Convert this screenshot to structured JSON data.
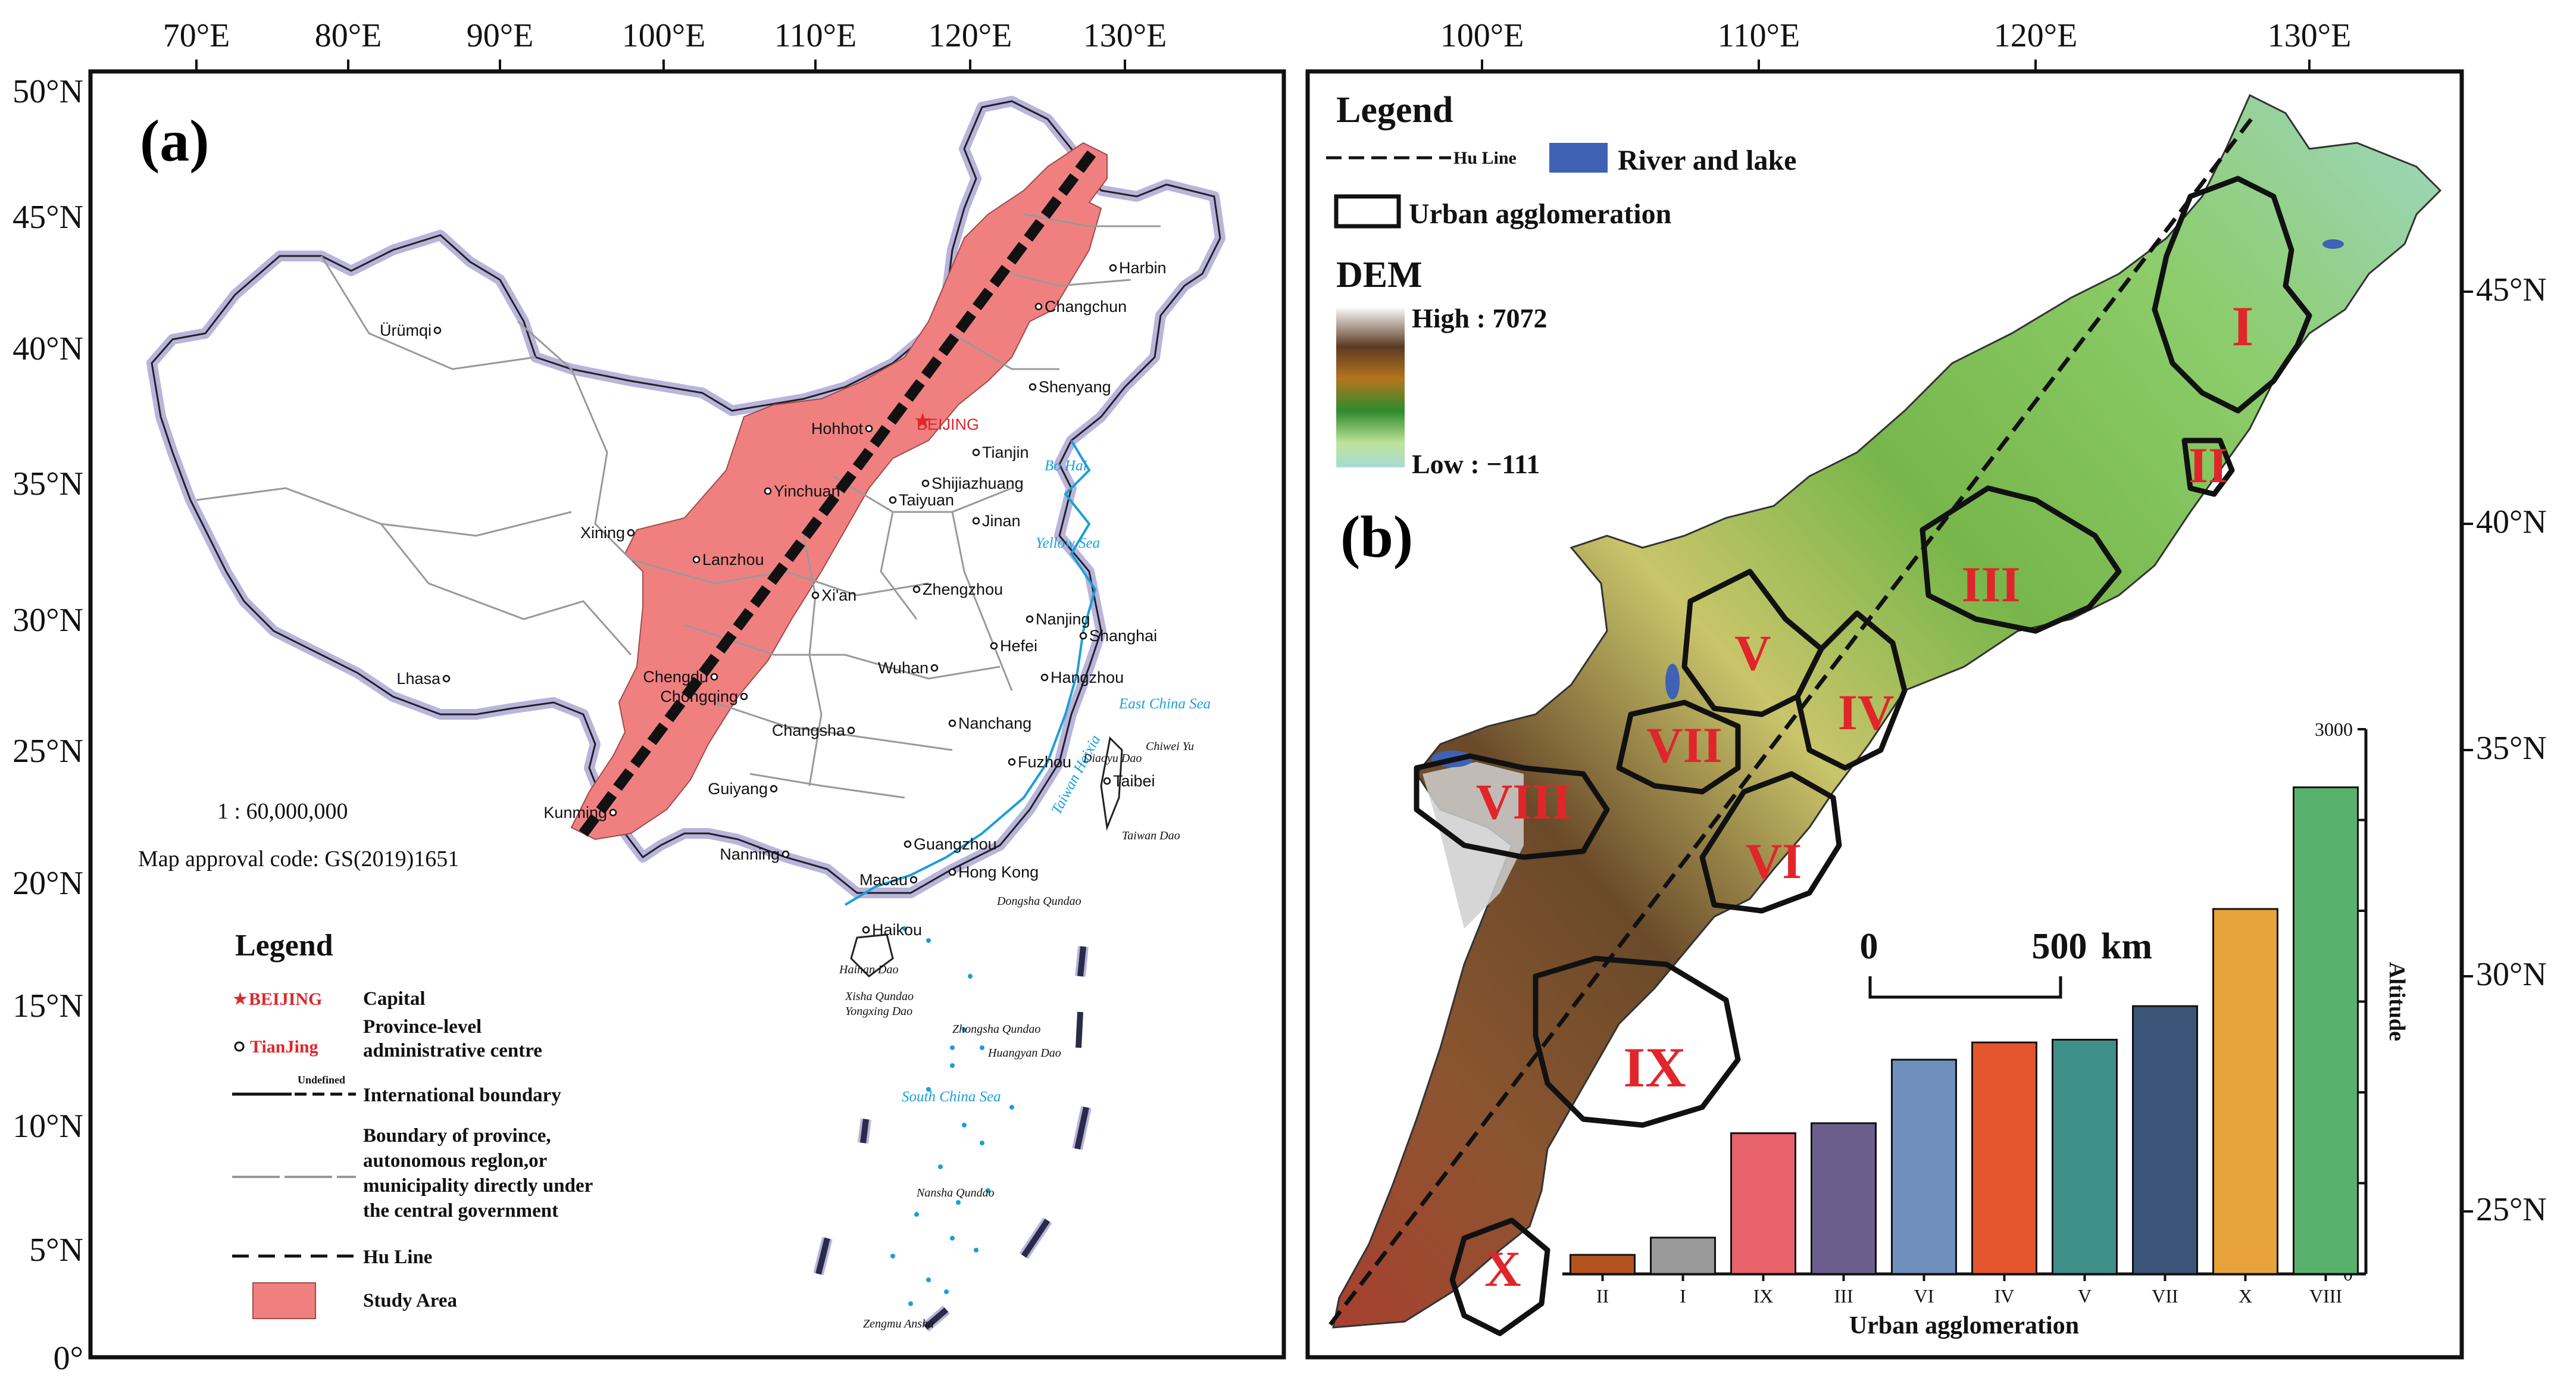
{
  "panel_a": {
    "label": "(a)",
    "lon_ticks": [
      "70°E",
      "80°E",
      "90°E",
      "100°E",
      "110°E",
      "120°E",
      "130°E"
    ],
    "lat_ticks": [
      "50°N",
      "45°N",
      "40°N",
      "35°N",
      "30°N",
      "25°N",
      "20°N",
      "15°N",
      "10°N",
      "5°N",
      "0°"
    ],
    "scale_text": "1 : 60,000,000",
    "approval_text": "Map approval code: GS(2019)1651",
    "capital_label": "BEIJING",
    "cities": [
      {
        "name": "Ürümqi"
      },
      {
        "name": "Harbin"
      },
      {
        "name": "Changchun"
      },
      {
        "name": "Shenyang"
      },
      {
        "name": "Hohhot"
      },
      {
        "name": "Tianjin"
      },
      {
        "name": "Shijiazhuang"
      },
      {
        "name": "Yinchuan"
      },
      {
        "name": "Taiyuan"
      },
      {
        "name": "Xining"
      },
      {
        "name": "Jinan"
      },
      {
        "name": "Lanzhou"
      },
      {
        "name": "Xi'an"
      },
      {
        "name": "Zhengzhou"
      },
      {
        "name": "Nanjing"
      },
      {
        "name": "Shanghai"
      },
      {
        "name": "Hefei"
      },
      {
        "name": "Lhasa"
      },
      {
        "name": "Chengdu"
      },
      {
        "name": "Wuhan"
      },
      {
        "name": "Hangzhou"
      },
      {
        "name": "Chongqing"
      },
      {
        "name": "Changsha"
      },
      {
        "name": "Nanchang"
      },
      {
        "name": "Fuzhou"
      },
      {
        "name": "Taibei"
      },
      {
        "name": "Guiyang"
      },
      {
        "name": "Kunming"
      },
      {
        "name": "Nanning"
      },
      {
        "name": "Guangzhou"
      },
      {
        "name": "Hong Kong"
      },
      {
        "name": "Macau"
      },
      {
        "name": "Haikou"
      }
    ],
    "seas": [
      "Bo Hai",
      "Yellow Sea",
      "East China Sea",
      "South China Sea",
      "Taiwan Haixia"
    ],
    "islands": [
      "Chiwei Yu",
      "Diaoyu Dao",
      "Taiwan Dao",
      "Dongsha Qundao",
      "Hainan Dao",
      "Xisha Qundao",
      "Yongxing Dao",
      "Zhongsha Qundao",
      "Huangyan Dao",
      "Nansha Qundao",
      "Zengmu Ansha"
    ],
    "legend": {
      "title": "Legend",
      "capital_sample": "BEIJING",
      "capital_label": "Capital",
      "province_sample": "TianJing",
      "province_label_1": "Province-level",
      "province_label_2": "administrative centre",
      "undefined_label": "Undefined",
      "intl_label": "International boundary",
      "prov_boundary_1": "Boundary of province,",
      "prov_boundary_2": "autonomous reglon,or",
      "prov_boundary_3": "municipality directly under",
      "prov_boundary_4": "the central government",
      "huline_label": "Hu Line",
      "study_label": "Study Area"
    }
  },
  "panel_b": {
    "label": "(b)",
    "lon_ticks": [
      "100°E",
      "110°E",
      "120°E",
      "130°E"
    ],
    "lat_ticks": [
      "45°N",
      "40°N",
      "35°N",
      "30°N",
      "25°N"
    ],
    "legend": {
      "title": "Legend",
      "huline": "Hu Line",
      "river": "River and lake",
      "ua": "Urban agglomeration",
      "dem_title": "DEM",
      "dem_high": "High : 7072",
      "dem_low": "Low : −111"
    },
    "scalebar": {
      "zero": "0",
      "end": "500",
      "unit": "km"
    },
    "regions": [
      "I",
      "II",
      "III",
      "IV",
      "V",
      "VI",
      "VII",
      "VIII",
      "IX",
      "X"
    ]
  },
  "chart_data": {
    "type": "bar",
    "categories": [
      "II",
      "I",
      "IX",
      "III",
      "VI",
      "IV",
      "V",
      "VII",
      "X",
      "VIII"
    ],
    "values": [
      105,
      200,
      775,
      830,
      1180,
      1275,
      1290,
      1475,
      2010,
      2680
    ],
    "colors": [
      "#b3541e",
      "#999999",
      "#e8636b",
      "#6b5e8c",
      "#6f8fbd",
      "#e4572e",
      "#3f8f8a",
      "#3c5478",
      "#e8a33a",
      "#58b26e"
    ],
    "ylabel": "Altitude",
    "xlabel": "Urban agglomeration",
    "ylim": [
      0,
      3000
    ],
    "yticks": [
      0,
      500,
      1000,
      1500,
      2000,
      2500,
      3000
    ],
    "grid": false
  },
  "colors": {
    "study_area": "#f08080",
    "capital_red": "#e0262a",
    "sea_blue": "#1a9fd8",
    "boundary_halo": "#b9b4dc"
  }
}
